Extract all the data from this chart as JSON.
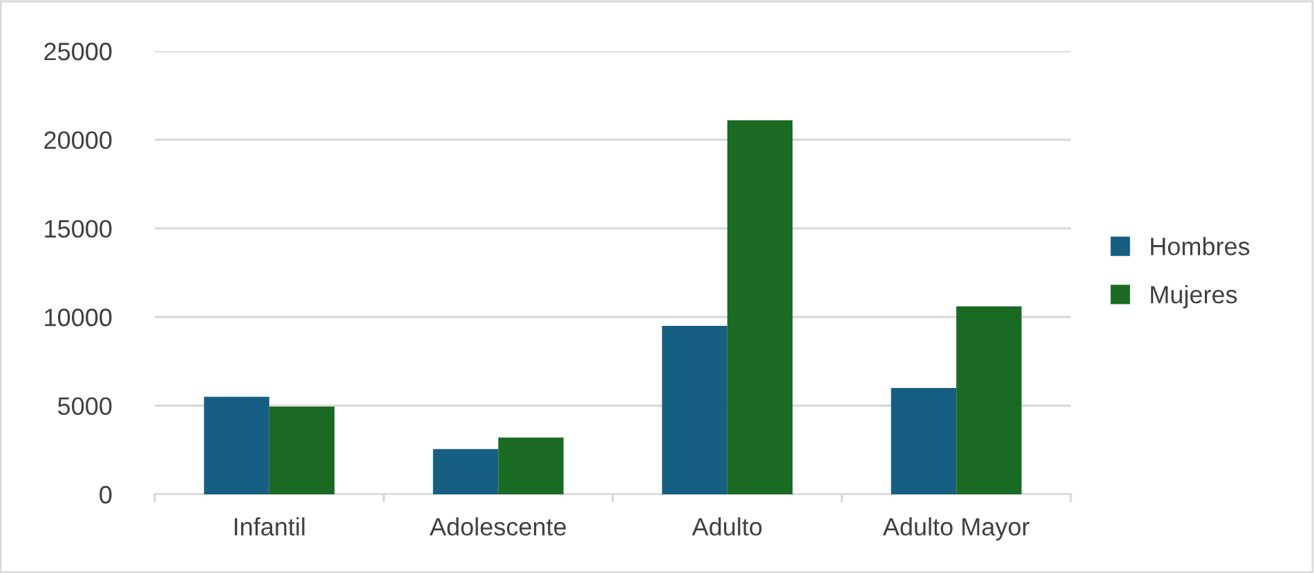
{
  "chart_data": {
    "type": "bar",
    "categories": [
      "Infantil",
      "Adolescente",
      "Adulto",
      "Adulto Mayor"
    ],
    "series": [
      {
        "name": "Hombres",
        "color": "#175e83",
        "values": [
          5500,
          2550,
          9500,
          6000
        ]
      },
      {
        "name": "Mujeres",
        "color": "#1b6a23",
        "values": [
          4950,
          3200,
          21100,
          10600
        ]
      }
    ],
    "ylim": [
      0,
      25000
    ],
    "yticks": [
      0,
      5000,
      10000,
      15000,
      20000,
      25000
    ],
    "grid": "y",
    "legend": "right"
  }
}
